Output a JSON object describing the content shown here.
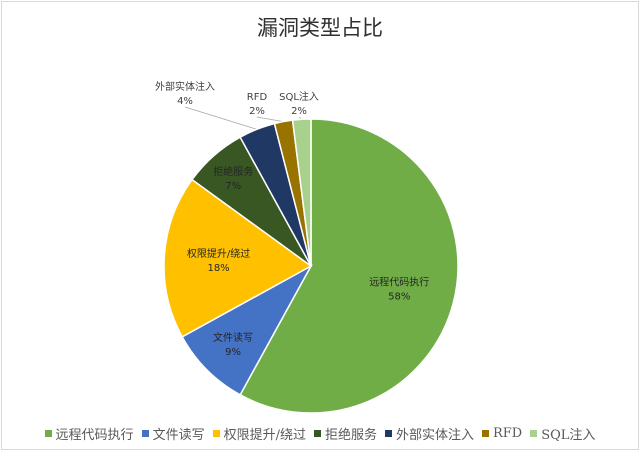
{
  "chart_data": {
    "type": "pie",
    "title": "漏洞类型占比",
    "slices": [
      {
        "name": "远程代码执行",
        "value": 58,
        "label": "58%",
        "color": "#70ad47"
      },
      {
        "name": "文件读写",
        "value": 9,
        "label": "9%",
        "color": "#4472c4"
      },
      {
        "name": "权限提升/绕过",
        "value": 18,
        "label": "18%",
        "color": "#ffc000"
      },
      {
        "name": "拒绝服务",
        "value": 7,
        "label": "7%",
        "color": "#385723"
      },
      {
        "name": "外部实体注入",
        "value": 4,
        "label": "4%",
        "color": "#203864"
      },
      {
        "name": "RFD",
        "value": 2,
        "label": "2%",
        "color": "#997300"
      },
      {
        "name": "SQL注入",
        "value": 2,
        "label": "2%",
        "color": "#a9d18e"
      }
    ],
    "legend_position": "bottom"
  }
}
